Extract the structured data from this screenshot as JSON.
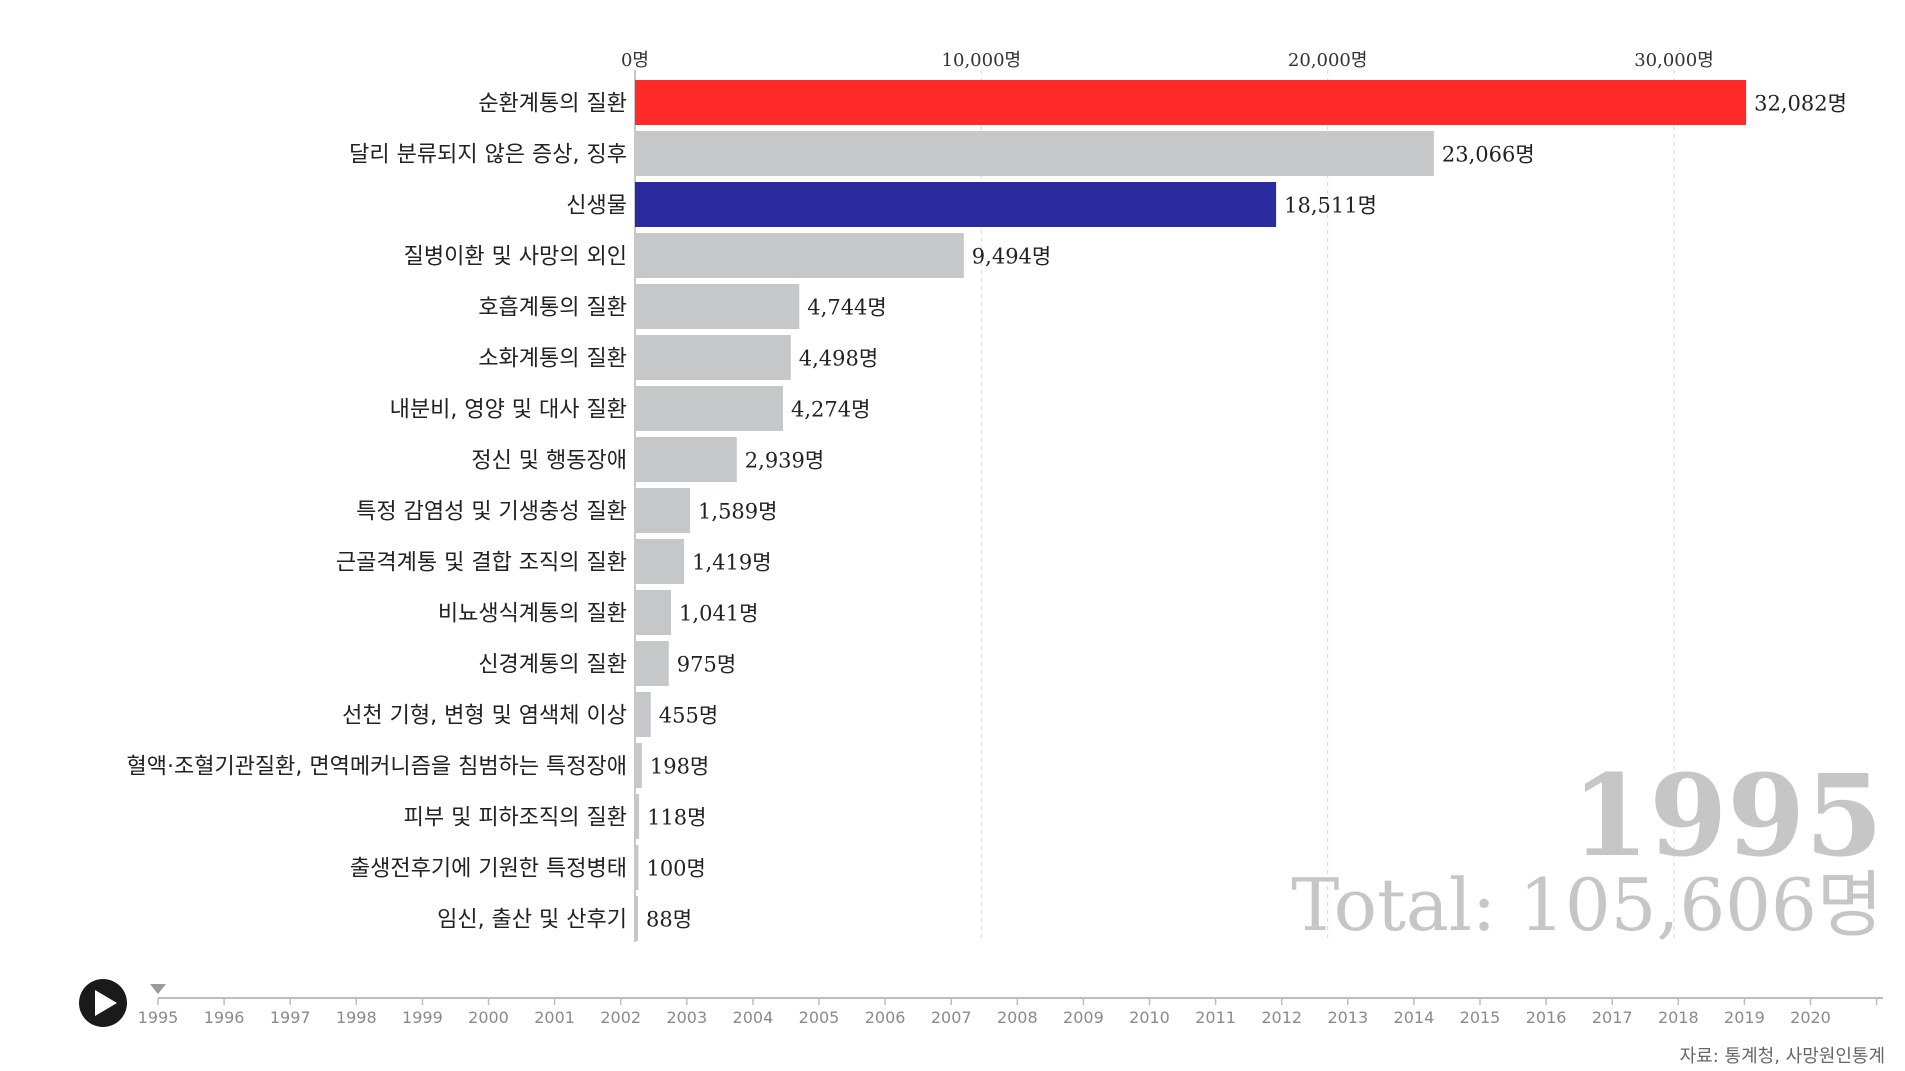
{
  "colors": {
    "highlight_1": "#ff2a2a",
    "highlight_2": "#2b2a9e",
    "default_bar": "#c6c7c9"
  },
  "chart_data": {
    "type": "bar",
    "orientation": "horizontal",
    "unit": "명",
    "xlim": [
      0,
      33000
    ],
    "x_ticks": [
      "0명",
      "10,000명",
      "20,000명",
      "30,000명"
    ],
    "x_tick_values": [
      0,
      10000,
      20000,
      30000
    ],
    "grid": true,
    "categories": [
      "순환계통의 질환",
      "달리 분류되지 않은 증상, 징후",
      "신생물",
      "질병이환 및 사망의 외인",
      "호흡계통의 질환",
      "소화계통의 질환",
      "내분비, 영양 및 대사 질환",
      "정신 및 행동장애",
      "특정 감염성 및 기생충성 질환",
      "근골격계통 및 결합 조직의 질환",
      "비뇨생식계통의 질환",
      "신경계통의 질환",
      "선천 기형, 변형 및 염색체 이상",
      "혈액·조혈기관질환, 면역메커니즘을 침범하는 특정장애",
      "피부 및 피하조직의 질환",
      "출생전후기에 기원한 특정병태",
      "임신, 출산 및 산후기"
    ],
    "values": [
      32082,
      23066,
      18511,
      9494,
      4744,
      4498,
      4274,
      2939,
      1589,
      1419,
      1041,
      975,
      455,
      198,
      118,
      100,
      88
    ],
    "value_labels": [
      "32,082명",
      "23,066명",
      "18,511명",
      "9,494명",
      "4,744명",
      "4,498명",
      "4,274명",
      "2,939명",
      "1,589명",
      "1,419명",
      "1,041명",
      "975명",
      "455명",
      "198명",
      "118명",
      "100명",
      "88명"
    ],
    "bar_colors": [
      "#ff2a2a",
      "#c6c7c9",
      "#2b2a9e",
      "#c6c7c9",
      "#c6c7c9",
      "#c6c7c9",
      "#c6c7c9",
      "#c6c7c9",
      "#c6c7c9",
      "#c6c7c9",
      "#c6c7c9",
      "#c6c7c9",
      "#c6c7c9",
      "#c6c7c9",
      "#c6c7c9",
      "#c6c7c9",
      "#c6c7c9"
    ],
    "year": "1995",
    "total": "Total: 105,606명"
  },
  "timeline": {
    "years": [
      "1995",
      "1996",
      "1997",
      "1998",
      "1999",
      "2000",
      "2001",
      "2002",
      "2003",
      "2004",
      "2005",
      "2006",
      "2007",
      "2008",
      "2009",
      "2010",
      "2011",
      "2012",
      "2013",
      "2014",
      "2015",
      "2016",
      "2017",
      "2018",
      "2019",
      "2020"
    ],
    "selected_index": 0
  },
  "controls": {
    "play_icon": "play-icon"
  },
  "source": "자료: 통계청, 사망원인통계"
}
